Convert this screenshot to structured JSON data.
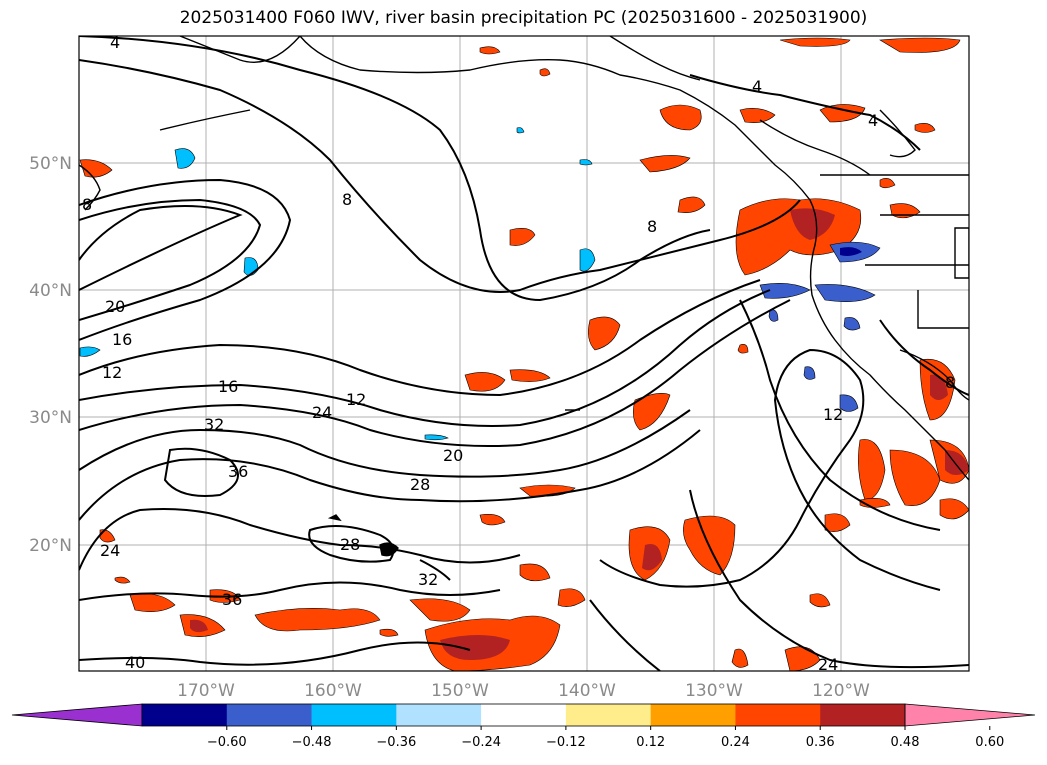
{
  "title": "2025031400 F060 IWV, river basin precipitation PC (2025031600 - 2025031900)",
  "map": {
    "lat_labels": [
      "50°N",
      "40°N",
      "30°N",
      "20°N"
    ],
    "lon_labels": [
      "170°W",
      "160°W",
      "150°W",
      "140°W",
      "130°W",
      "120°W"
    ],
    "contour_labels": [
      "4",
      "4",
      "4",
      "8",
      "8",
      "8",
      "12",
      "12",
      "12",
      "16",
      "16",
      "20",
      "20",
      "24",
      "24",
      "28",
      "28",
      "32",
      "32",
      "36",
      "36",
      "40",
      "24",
      "8"
    ]
  },
  "colorbar": {
    "ticks": [
      "−0.60",
      "−0.48",
      "−0.36",
      "−0.24",
      "−0.12",
      "0.12",
      "0.24",
      "0.36",
      "0.48",
      "0.60"
    ],
    "colors": [
      "#9b30d0",
      "#00008c",
      "#3a5fcd",
      "#00bfff",
      "#b0e2ff",
      "#ffffff",
      "#ffec8b",
      "#ffa000",
      "#ff4500",
      "#b22222",
      "#ff82ab"
    ]
  }
}
